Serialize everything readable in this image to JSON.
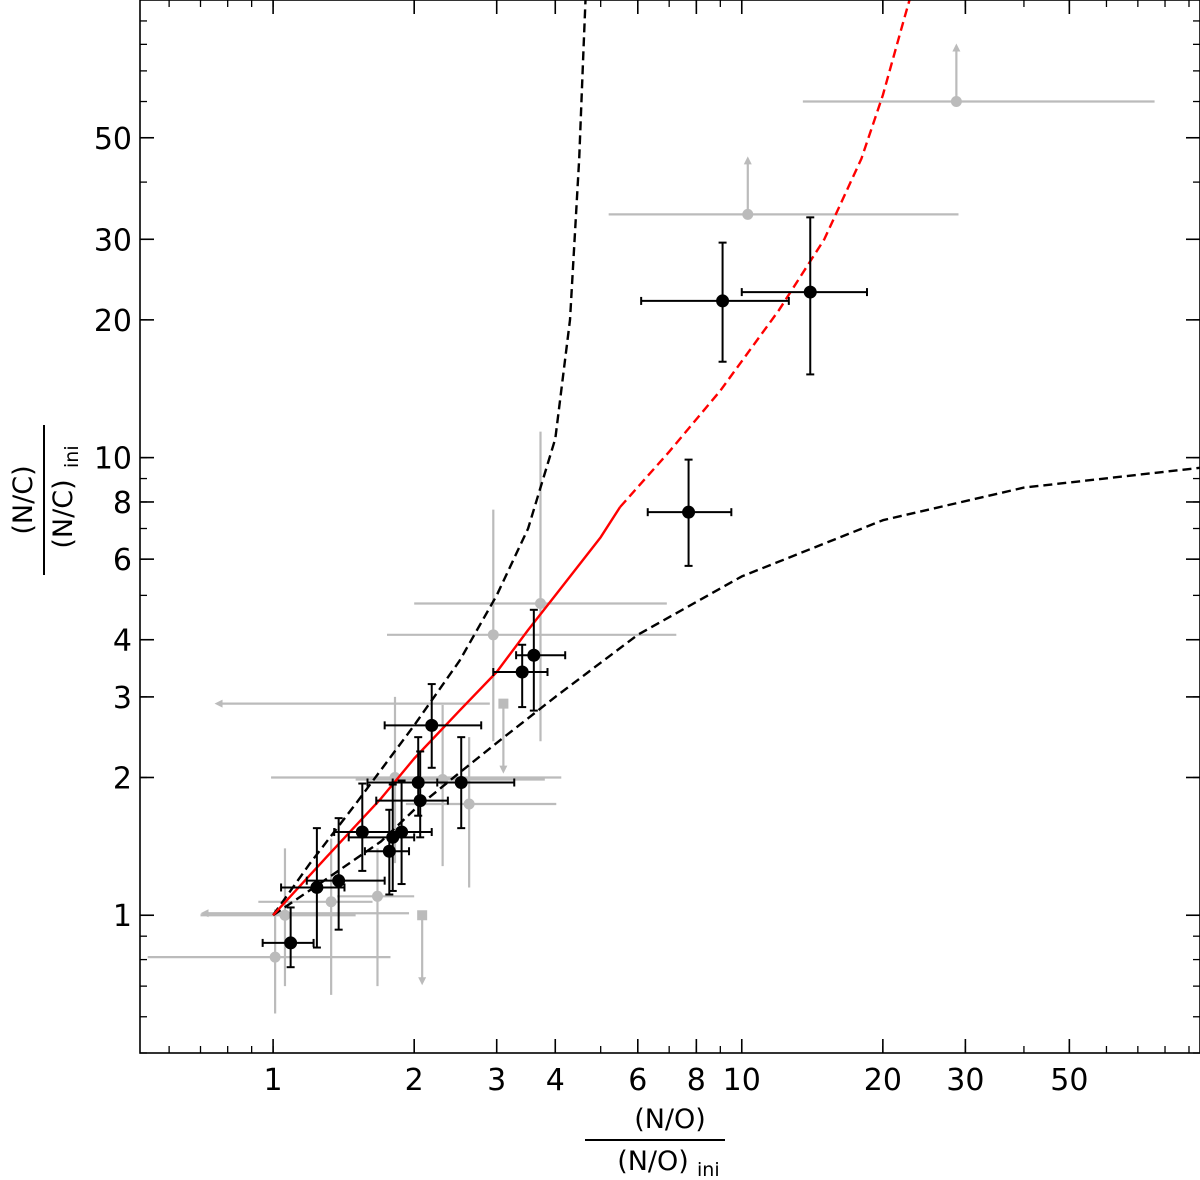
{
  "chart_data": {
    "type": "scatter",
    "title": "",
    "xscale": "log",
    "yscale": "log",
    "xlim": [
      0.52,
      95
    ],
    "ylim": [
      0.5,
      100
    ],
    "grid": false,
    "xlabel": {
      "numerator": "(N/O)",
      "denominator_main": "(N/O)",
      "denominator_sub": "ini"
    },
    "ylabel": {
      "numerator": "(N/C)",
      "denominator_main": "(N/C)",
      "denominator_sub": "ini"
    },
    "x_ticks": [
      {
        "value": 1,
        "label": "1"
      },
      {
        "value": 2,
        "label": "2"
      },
      {
        "value": 3,
        "label": "3"
      },
      {
        "value": 4,
        "label": "4"
      },
      {
        "value": 6,
        "label": "6"
      },
      {
        "value": 8,
        "label": "8"
      },
      {
        "value": 10,
        "label": "10"
      },
      {
        "value": 20,
        "label": "20"
      },
      {
        "value": 30,
        "label": "30"
      },
      {
        "value": 50,
        "label": "50"
      }
    ],
    "y_ticks": [
      {
        "value": 1,
        "label": "1"
      },
      {
        "value": 2,
        "label": "2"
      },
      {
        "value": 3,
        "label": "3"
      },
      {
        "value": 4,
        "label": "4"
      },
      {
        "value": 6,
        "label": "6"
      },
      {
        "value": 8,
        "label": "8"
      },
      {
        "value": 10,
        "label": "10"
      },
      {
        "value": 20,
        "label": "20"
      },
      {
        "value": 30,
        "label": "30"
      },
      {
        "value": 50,
        "label": "50"
      }
    ],
    "colors": {
      "detections": "#000000",
      "limits": "#bbbbbb",
      "model_center": "#ff0000",
      "model_bounds": "#000000"
    },
    "curves": [
      {
        "style": "black-dashed",
        "points": [
          [
            1.0,
            1.0
          ],
          [
            1.2,
            1.3
          ],
          [
            1.5,
            1.75
          ],
          [
            2.0,
            2.6
          ],
          [
            2.5,
            3.6
          ],
          [
            3.0,
            5.0
          ],
          [
            3.5,
            7.0
          ],
          [
            4.0,
            11.0
          ],
          [
            4.3,
            20.0
          ],
          [
            4.5,
            45.0
          ],
          [
            4.6,
            80.0
          ],
          [
            4.64,
            100.0
          ]
        ]
      },
      {
        "style": "black-dashed",
        "points": [
          [
            1.0,
            1.0
          ],
          [
            1.3,
            1.2
          ],
          [
            1.7,
            1.45
          ],
          [
            2.0,
            1.7
          ],
          [
            2.5,
            2.05
          ],
          [
            3.0,
            2.38
          ],
          [
            4.0,
            3.0
          ],
          [
            6.0,
            4.1
          ],
          [
            10.0,
            5.5
          ],
          [
            20.0,
            7.3
          ],
          [
            40.0,
            8.6
          ],
          [
            95.0,
            9.5
          ]
        ]
      },
      {
        "style": "red-solid",
        "points": [
          [
            1.0,
            1.0
          ],
          [
            1.3,
            1.34
          ],
          [
            1.7,
            1.8
          ],
          [
            2.0,
            2.2
          ],
          [
            2.5,
            2.8
          ],
          [
            3.0,
            3.4
          ],
          [
            3.5,
            4.2
          ],
          [
            4.0,
            5.0
          ],
          [
            5.0,
            6.7
          ],
          [
            5.5,
            7.8
          ]
        ]
      },
      {
        "style": "red-dashed",
        "points": [
          [
            5.5,
            7.8
          ],
          [
            7.0,
            10.3
          ],
          [
            9.0,
            14.0
          ],
          [
            12.0,
            21.0
          ],
          [
            15.0,
            30.0
          ],
          [
            18.0,
            45.0
          ],
          [
            20.0,
            62.0
          ],
          [
            22.0,
            88.0
          ],
          [
            22.8,
            100.0
          ]
        ]
      }
    ],
    "detections": [
      {
        "x": 1.09,
        "y": 0.87,
        "xerr": [
          0.14,
          0.13
        ],
        "yerr": [
          0.1,
          0.17
        ]
      },
      {
        "x": 1.24,
        "y": 1.15,
        "xerr": [
          0.2,
          0.18
        ],
        "yerr": [
          0.3,
          0.4
        ]
      },
      {
        "x": 1.38,
        "y": 1.19,
        "xerr": [
          0.2,
          0.35
        ],
        "yerr": [
          0.26,
          0.44
        ]
      },
      {
        "x": 1.55,
        "y": 1.52,
        "xerr": [
          0.2,
          0.35
        ],
        "yerr": [
          0.27,
          0.42
        ]
      },
      {
        "x": 1.77,
        "y": 1.38,
        "xerr": [
          0.2,
          0.18
        ],
        "yerr": [
          0.27,
          0.32
        ]
      },
      {
        "x": 1.8,
        "y": 1.48,
        "xerr": [
          0.35,
          0.2
        ],
        "yerr": [
          0.35,
          0.45
        ]
      },
      {
        "x": 1.88,
        "y": 1.52,
        "xerr": [
          0.35,
          0.3
        ],
        "yerr": [
          0.35,
          0.45
        ]
      },
      {
        "x": 2.04,
        "y": 1.95,
        "xerr": [
          0.45,
          0.2
        ],
        "yerr": [
          0.3,
          0.5
        ]
      },
      {
        "x": 2.06,
        "y": 1.78,
        "xerr": [
          0.4,
          0.3
        ],
        "yerr": [
          0.3,
          0.5
        ]
      },
      {
        "x": 2.18,
        "y": 2.6,
        "xerr": [
          0.45,
          0.6
        ],
        "yerr": [
          0.5,
          0.6
        ]
      },
      {
        "x": 2.52,
        "y": 1.95,
        "xerr": [
          0.72,
          0.75
        ],
        "yerr": [
          0.4,
          0.5
        ]
      },
      {
        "x": 3.4,
        "y": 3.4,
        "xerr": [
          0.45,
          0.45
        ],
        "yerr": [
          0.55,
          0.5
        ]
      },
      {
        "x": 3.6,
        "y": 3.7,
        "xerr": [
          0.3,
          0.6
        ],
        "yerr": [
          0.9,
          0.95
        ]
      },
      {
        "x": 7.7,
        "y": 7.6,
        "xerr": [
          1.4,
          1.8
        ],
        "yerr": [
          1.8,
          2.3
        ]
      },
      {
        "x": 9.1,
        "y": 22.0,
        "xerr": [
          3.0,
          3.5
        ],
        "yerr": [
          5.8,
          7.5
        ]
      },
      {
        "x": 14.0,
        "y": 23.0,
        "xerr": [
          4.0,
          4.5
        ],
        "yerr": [
          7.8,
          10.5
        ]
      }
    ],
    "limits": [
      {
        "x": 1.01,
        "y": 0.81,
        "xerr": [
          0.47,
          0.77
        ],
        "yerr": [
          0.2,
          0.22
        ],
        "arrow": null
      },
      {
        "x": 1.06,
        "y": 1.0,
        "xerr": [
          0.36,
          0.44
        ],
        "yerr": [
          0.3,
          0.4
        ],
        "arrow": null
      },
      {
        "x": 1.33,
        "y": 1.07,
        "xerr": [
          0.4,
          0.3
        ],
        "yerr": [
          0.4,
          0.4
        ],
        "arrow": null
      },
      {
        "x": 1.67,
        "y": 1.1,
        "xerr": [
          0.3,
          0.33
        ],
        "yerr": [
          0.4,
          0.3
        ],
        "arrow": null
      },
      {
        "x": 2.08,
        "y": 1.0,
        "xerr": [
          0.0,
          0.0
        ],
        "yerr": [
          0.0,
          0.0
        ],
        "arrow": "down"
      },
      {
        "x": 1.95,
        "y": 1.01,
        "xerr": [
          1.25,
          0.0
        ],
        "yerr": [
          0.0,
          0.0
        ],
        "arrow": "left"
      },
      {
        "x": 1.82,
        "y": 2.0,
        "xerr": [
          0.83,
          2.3
        ],
        "yerr": [
          0.7,
          1.0
        ],
        "arrow": null
      },
      {
        "x": 2.3,
        "y": 1.98,
        "xerr": [
          0.8,
          1.5
        ],
        "yerr": [
          0.7,
          0.9
        ],
        "arrow": null
      },
      {
        "x": 2.62,
        "y": 1.75,
        "xerr": [
          0.7,
          1.4
        ],
        "yerr": [
          0.6,
          0.7
        ],
        "arrow": null
      },
      {
        "x": 2.95,
        "y": 4.1,
        "xerr": [
          1.2,
          4.3
        ],
        "yerr": [
          1.7,
          3.6
        ],
        "arrow": null
      },
      {
        "x": 3.1,
        "y": 2.9,
        "xerr": [
          0.0,
          0.0
        ],
        "yerr": [
          0.0,
          0.0
        ],
        "arrow": "down"
      },
      {
        "x": 2.9,
        "y": 2.9,
        "xerr": [
          2.15,
          0.0
        ],
        "yerr": [
          0.0,
          0.0
        ],
        "arrow": "left"
      },
      {
        "x": 3.72,
        "y": 4.8,
        "xerr": [
          1.72,
          3.2
        ],
        "yerr": [
          2.4,
          6.6
        ],
        "arrow": null
      },
      {
        "x": 10.3,
        "y": 34.0,
        "xerr": [
          5.1,
          18.7
        ],
        "yerr": [
          0.0,
          0.0
        ],
        "arrow": "up"
      },
      {
        "x": 28.7,
        "y": 60.0,
        "xerr": [
          15.2,
          47.3
        ],
        "yerr": [
          0.0,
          0.0
        ],
        "arrow": "up"
      }
    ]
  }
}
